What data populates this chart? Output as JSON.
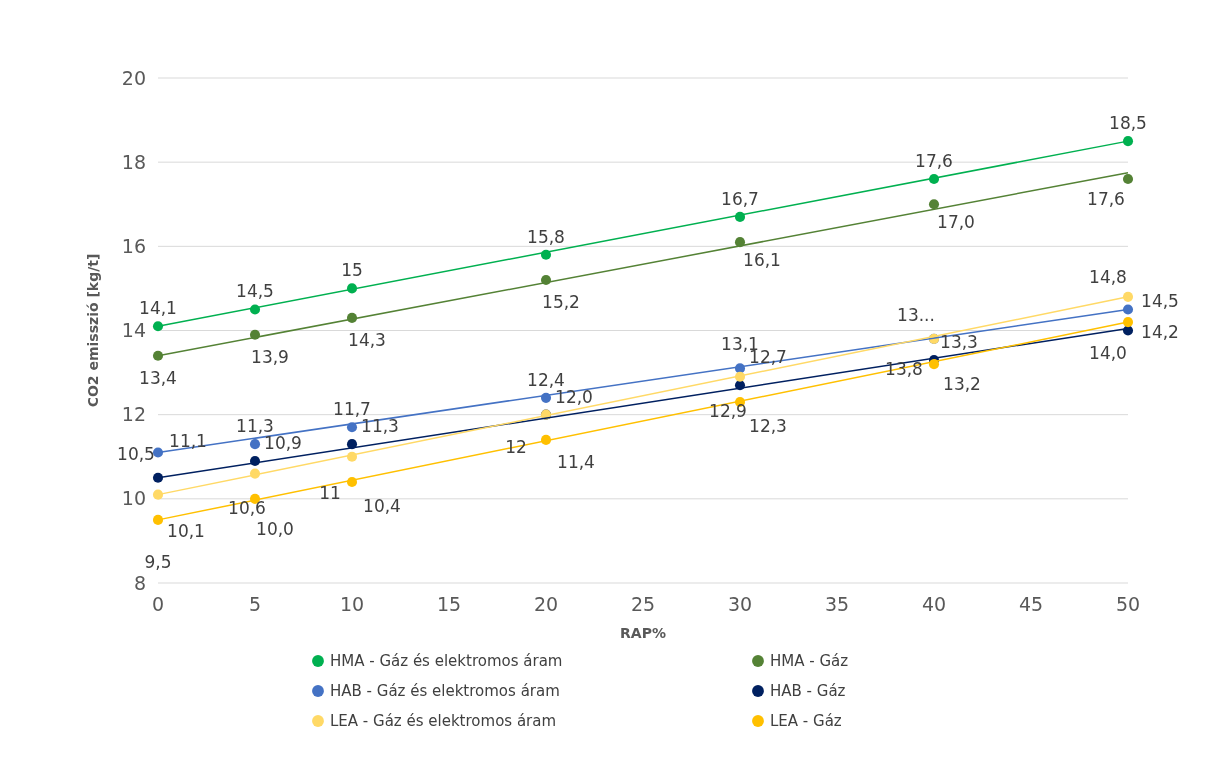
{
  "chart_data": {
    "type": "scatter",
    "xlabel": "RAP%",
    "ylabel": "CO2 emisszió [kg/t]",
    "xlim": [
      0,
      50
    ],
    "ylim": [
      8,
      20
    ],
    "xticks": [
      0,
      5,
      10,
      15,
      20,
      25,
      30,
      35,
      40,
      45,
      50
    ],
    "yticks": [
      8,
      10,
      12,
      14,
      16,
      18,
      20
    ],
    "grid": "y",
    "legend": "bottom",
    "marker": "circle",
    "series": [
      {
        "name": "HMA - Gáz és elektromos áram",
        "color": "#00b050",
        "x": [
          0,
          5,
          10,
          20,
          30,
          40,
          50
        ],
        "values": [
          14.1,
          14.5,
          15,
          15.8,
          16.7,
          17.6,
          18.5
        ],
        "value_labels": [
          "14,1",
          "14,5",
          "15",
          "15,8",
          "16,7",
          "17,6",
          "18,5"
        ]
      },
      {
        "name": "HMA - Gáz",
        "color": "#548235",
        "x": [
          0,
          5,
          10,
          20,
          30,
          40,
          50
        ],
        "values": [
          13.4,
          13.9,
          14.3,
          15.2,
          16.1,
          17.0,
          17.6
        ],
        "value_labels": [
          "13,4",
          "13,9",
          "14,3",
          "15,2",
          "16,1",
          "17,0",
          "17,6"
        ]
      },
      {
        "name": "HAB - Gáz és elektromos áram",
        "color": "#4472c4",
        "x": [
          0,
          5,
          10,
          20,
          30,
          40,
          50
        ],
        "values": [
          11.1,
          11.3,
          11.7,
          12.4,
          13.1,
          13.8,
          14.5
        ],
        "value_labels": [
          "11,1",
          "11,3",
          "11,7",
          "12,4",
          "13,1",
          "13...",
          "14,5"
        ]
      },
      {
        "name": "HAB - Gáz",
        "color": "#002060",
        "x": [
          0,
          5,
          10,
          20,
          30,
          40,
          50
        ],
        "values": [
          10.5,
          10.9,
          11.3,
          12.0,
          12.7,
          13.3,
          14.0
        ],
        "value_labels": [
          "10,5",
          "10,9",
          "11,3",
          "12,0",
          "12,7",
          "13,3",
          "14,0"
        ]
      },
      {
        "name": "LEA - Gáz és elektromos áram",
        "color": "#ffd966",
        "x": [
          0,
          5,
          10,
          20,
          30,
          40,
          50
        ],
        "values": [
          10.1,
          10.6,
          11,
          12,
          12.9,
          13.8,
          14.8
        ],
        "value_labels": [
          "10,1",
          "10,6",
          "11",
          "12",
          "12,9",
          "13,8",
          "14,8"
        ]
      },
      {
        "name": "LEA - Gáz",
        "color": "#ffc000",
        "x": [
          0,
          5,
          10,
          20,
          30,
          40,
          50
        ],
        "values": [
          9.5,
          10.0,
          10.4,
          11.4,
          12.3,
          13.2,
          14.2
        ],
        "value_labels": [
          "9,5",
          "10,0",
          "10,4",
          "11,4",
          "12,3",
          "13,2",
          "14,2"
        ]
      },
      {
        "type": "line",
        "marker": "none",
        "color": "#00b050",
        "x": [
          0,
          50
        ],
        "values": [
          14.1,
          18.5
        ]
      },
      {
        "type": "line",
        "marker": "none",
        "color": "#548235",
        "x": [
          0,
          50
        ],
        "values": [
          13.4,
          17.75
        ]
      },
      {
        "type": "line",
        "marker": "none",
        "color": "#4472c4",
        "x": [
          0,
          50
        ],
        "values": [
          11.1,
          14.5
        ]
      },
      {
        "type": "line",
        "marker": "none",
        "color": "#002060",
        "x": [
          0,
          50
        ],
        "values": [
          10.5,
          14.05
        ]
      },
      {
        "type": "line",
        "marker": "none",
        "color": "#ffd966",
        "x": [
          0,
          50
        ],
        "values": [
          10.1,
          14.8
        ]
      },
      {
        "type": "line",
        "marker": "none",
        "color": "#ffc000",
        "x": [
          0,
          50
        ],
        "values": [
          9.5,
          14.2
        ]
      }
    ]
  }
}
